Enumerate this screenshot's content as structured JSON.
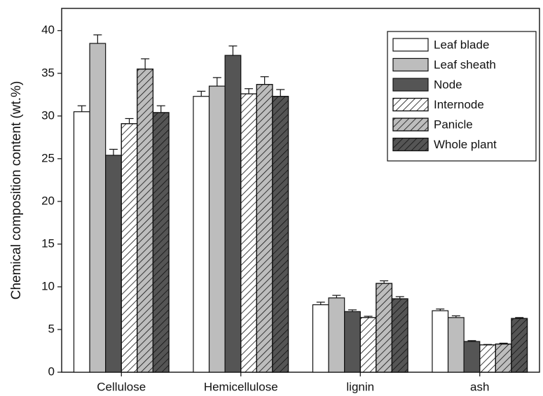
{
  "chart_data": {
    "type": "bar",
    "y_label": "Chemical composition content (wt.%)",
    "categories": [
      "Cellulose",
      "Hemicellulose",
      "lignin",
      "ash"
    ],
    "series": [
      {
        "name": "Leaf blade",
        "color": "#ffffff",
        "hatch": false,
        "values": [
          30.5,
          32.3,
          7.9,
          7.2
        ],
        "errors": [
          0.7,
          0.6,
          0.3,
          0.2
        ]
      },
      {
        "name": "Leaf sheath",
        "color": "#bdbdbd",
        "hatch": false,
        "values": [
          38.5,
          33.5,
          8.7,
          6.4
        ],
        "errors": [
          1.0,
          1.0,
          0.3,
          0.2
        ]
      },
      {
        "name": "Node",
        "color": "#555555",
        "hatch": false,
        "values": [
          25.4,
          37.1,
          7.1,
          3.6
        ],
        "errors": [
          0.7,
          1.1,
          0.2,
          0.1
        ]
      },
      {
        "name": "Internode",
        "color": "#ffffff",
        "hatch": true,
        "values": [
          29.1,
          32.6,
          6.4,
          3.2
        ],
        "errors": [
          0.6,
          0.6,
          0.15,
          0.05
        ]
      },
      {
        "name": "Panicle",
        "color": "#bdbdbd",
        "hatch": true,
        "values": [
          35.5,
          33.7,
          10.4,
          3.3
        ],
        "errors": [
          1.2,
          0.9,
          0.3,
          0.1
        ]
      },
      {
        "name": "Whole plant",
        "color": "#555555",
        "hatch": true,
        "values": [
          30.4,
          32.3,
          8.6,
          6.3
        ],
        "errors": [
          0.8,
          0.8,
          0.25,
          0.1
        ]
      }
    ],
    "ylim": [
      0,
      42.6
    ],
    "yticks": [
      0,
      5,
      10,
      15,
      20,
      25,
      30,
      35,
      40
    ],
    "legend": "upper right"
  }
}
